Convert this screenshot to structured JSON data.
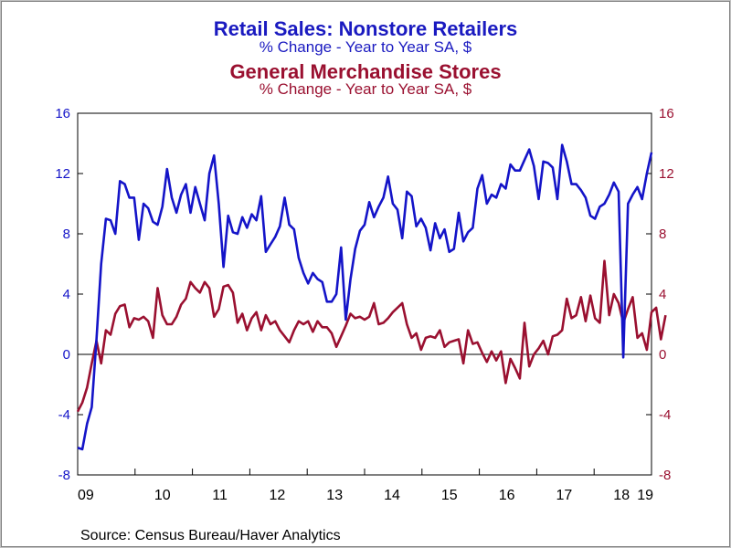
{
  "chart_data": {
    "type": "line",
    "title": "Retail Sales: Nonstore Retailers",
    "subtitle": "% Change - Year to Year    SA, $",
    "title2": "General Merchandise Stores",
    "subtitle2": "% Change - Year to Year    SA, $",
    "source": "Source:  Census Bureau/Haver Analytics",
    "ylim": [
      -8,
      16
    ],
    "yticks": [
      -8,
      -4,
      0,
      4,
      8,
      12,
      16
    ],
    "xticks": [
      "09",
      "10",
      "11",
      "12",
      "13",
      "14",
      "15",
      "16",
      "17",
      "18",
      "19"
    ],
    "x_start": "2009-01",
    "grid": false,
    "colors": {
      "series1": "#1414c8",
      "series2": "#9a1030",
      "axis_left": "#1414c8",
      "axis_right": "#9a1030"
    },
    "series": [
      {
        "name": "Retail Sales: Nonstore Retailers",
        "axis": "left",
        "values": [
          -6.2,
          -6.3,
          -4.6,
          -3.5,
          1.0,
          6.0,
          9.0,
          8.9,
          8.0,
          11.5,
          11.3,
          10.4,
          10.4,
          7.6,
          10.0,
          9.7,
          8.8,
          8.6,
          9.8,
          12.3,
          10.4,
          9.4,
          10.6,
          11.3,
          9.4,
          11.1,
          10.0,
          8.9,
          12.0,
          13.2,
          10.0,
          5.8,
          9.2,
          8.1,
          8.0,
          9.1,
          8.4,
          9.3,
          8.9,
          10.5,
          6.8,
          7.3,
          7.8,
          8.5,
          10.4,
          8.6,
          8.3,
          6.4,
          5.4,
          4.7,
          5.4,
          5.0,
          4.8,
          3.5,
          3.5,
          4.0,
          7.1,
          2.3,
          5.0,
          7.0,
          8.2,
          8.6,
          10.1,
          9.1,
          9.8,
          10.4,
          11.8,
          10.0,
          9.6,
          7.7,
          10.8,
          10.5,
          8.5,
          9.0,
          8.4,
          6.9,
          8.7,
          7.7,
          8.3,
          6.8,
          7.0,
          9.4,
          7.5,
          8.1,
          8.4,
          11.0,
          11.9,
          10.0,
          10.6,
          10.4,
          11.3,
          11.0,
          12.6,
          12.2,
          12.2,
          12.9,
          13.6,
          12.5,
          10.3,
          12.8,
          12.7,
          12.4,
          10.3,
          13.9,
          12.8,
          11.3,
          11.3,
          10.9,
          10.4,
          9.2,
          9.0,
          9.8,
          10.0,
          10.6,
          11.4,
          10.8,
          -0.2,
          10.0,
          10.6,
          11.1,
          10.3,
          12.0,
          13.4
        ]
      },
      {
        "name": "General Merchandise Stores",
        "axis": "right",
        "values": [
          -3.8,
          -3.2,
          -2.2,
          -0.6,
          0.9,
          -0.6,
          1.6,
          1.3,
          2.7,
          3.2,
          3.3,
          1.8,
          2.4,
          2.3,
          2.5,
          2.2,
          1.1,
          4.4,
          2.6,
          2.0,
          2.0,
          2.5,
          3.3,
          3.7,
          4.8,
          4.4,
          4.1,
          4.8,
          4.4,
          2.5,
          3.0,
          4.5,
          4.6,
          4.1,
          2.1,
          2.7,
          1.6,
          2.4,
          2.8,
          1.6,
          2.6,
          2.0,
          2.2,
          1.6,
          1.2,
          0.8,
          1.6,
          2.2,
          2.0,
          2.2,
          1.5,
          2.2,
          1.8,
          1.8,
          1.4,
          0.5,
          1.2,
          1.9,
          2.7,
          2.4,
          2.5,
          2.3,
          2.5,
          3.4,
          2.0,
          2.1,
          2.4,
          2.8,
          3.1,
          3.4,
          2.0,
          1.1,
          1.4,
          0.3,
          1.1,
          1.2,
          1.1,
          1.6,
          0.5,
          0.8,
          0.9,
          1.0,
          -0.6,
          1.6,
          0.7,
          0.8,
          0.1,
          -0.5,
          0.2,
          -0.4,
          0.2,
          -1.9,
          -0.3,
          -0.9,
          -1.6,
          2.1,
          -0.8,
          0.0,
          0.4,
          0.9,
          0.0,
          1.2,
          1.3,
          1.6,
          3.7,
          2.4,
          2.6,
          3.8,
          2.2,
          3.9,
          2.4,
          2.1,
          6.2,
          2.6,
          4.0,
          3.4,
          2.1,
          3.0,
          3.8,
          1.1,
          1.4,
          0.3,
          2.8,
          3.1,
          1.0,
          2.6
        ]
      }
    ]
  }
}
